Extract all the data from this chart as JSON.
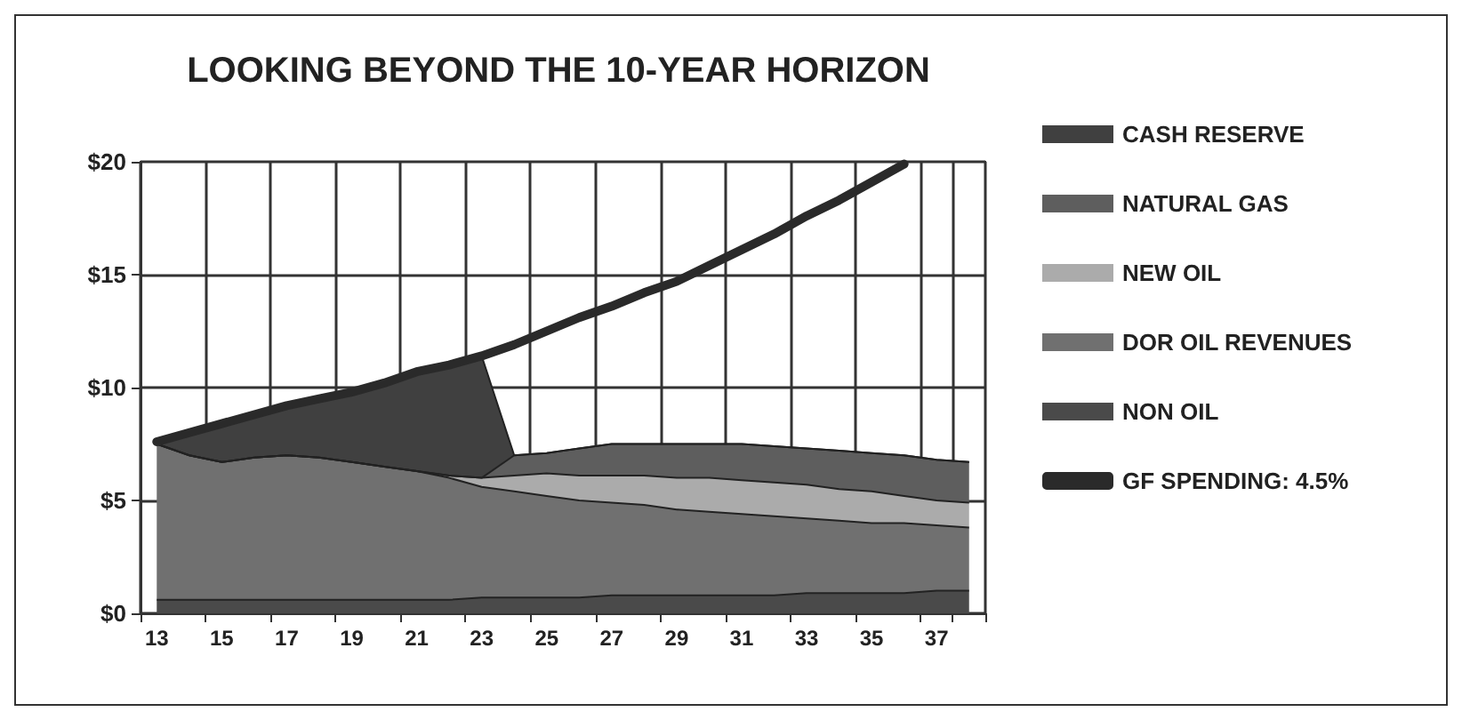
{
  "chart_data": {
    "type": "area",
    "title": "LOOKING BEYOND THE 10-YEAR HORIZON",
    "stacked": true,
    "categories": [
      "13",
      null,
      "15",
      null,
      "17",
      null,
      "19",
      null,
      "21",
      null,
      "23",
      null,
      "25",
      null,
      "27",
      null,
      "29",
      null,
      "31",
      null,
      "33",
      null,
      "35",
      null,
      "37",
      null
    ],
    "ylim": [
      0,
      20
    ],
    "yticks": [
      {
        "value": 0,
        "label": "$0"
      },
      {
        "value": 5,
        "label": "$5"
      },
      {
        "value": 10,
        "label": "$10"
      },
      {
        "value": 15,
        "label": "$15"
      },
      {
        "value": 20,
        "label": "$20"
      }
    ],
    "grid": true,
    "legend": "right",
    "marker": "none",
    "series": [
      {
        "name": "NON OIL",
        "color": "#4a4a4a",
        "values": [
          0.6,
          0.6,
          0.6,
          0.6,
          0.6,
          0.6,
          0.6,
          0.6,
          0.6,
          0.6,
          0.7,
          0.7,
          0.7,
          0.7,
          0.8,
          0.8,
          0.8,
          0.8,
          0.8,
          0.8,
          0.9,
          0.9,
          0.9,
          0.9,
          1.0,
          1.0
        ]
      },
      {
        "name": "DOR OIL REVENUES",
        "color": "#707070",
        "values": [
          6.9,
          6.4,
          6.1,
          6.3,
          6.4,
          6.3,
          6.1,
          5.9,
          5.7,
          5.4,
          4.9,
          4.7,
          4.5,
          4.3,
          4.1,
          4.0,
          3.8,
          3.7,
          3.6,
          3.5,
          3.3,
          3.2,
          3.1,
          3.1,
          2.9,
          2.8
        ]
      },
      {
        "name": "NEW OIL",
        "color": "#ababab",
        "values": [
          0,
          0,
          0,
          0,
          0,
          0,
          0,
          0,
          0,
          0.1,
          0.4,
          0.7,
          1.0,
          1.1,
          1.2,
          1.3,
          1.4,
          1.5,
          1.5,
          1.5,
          1.5,
          1.4,
          1.4,
          1.2,
          1.1,
          1.1
        ]
      },
      {
        "name": "NATURAL GAS",
        "color": "#5e5e5e",
        "values": [
          0,
          0,
          0,
          0,
          0,
          0,
          0,
          0,
          0,
          0,
          0,
          0.9,
          0.9,
          1.2,
          1.4,
          1.4,
          1.5,
          1.5,
          1.6,
          1.6,
          1.6,
          1.7,
          1.7,
          1.8,
          1.8,
          1.8
        ]
      },
      {
        "name": "CASH RESERVE",
        "color": "#404040",
        "values": [
          0.1,
          1.0,
          1.7,
          1.9,
          2.2,
          2.6,
          3.1,
          3.7,
          4.4,
          4.9,
          5.4,
          0,
          0,
          0,
          0,
          0,
          0,
          0,
          0,
          0,
          0,
          0,
          0,
          0,
          0,
          0
        ]
      },
      {
        "name": "GF SPENDING: 4.5%",
        "type": "line",
        "color": "#2a2a2a",
        "values": [
          7.6,
          8.0,
          8.4,
          8.8,
          9.2,
          9.5,
          9.8,
          10.2,
          10.7,
          11.0,
          11.4,
          11.9,
          12.5,
          13.1,
          13.6,
          14.2,
          14.7,
          15.4,
          16.1,
          16.8,
          17.6,
          18.3,
          19.1,
          19.9,
          null,
          null
        ]
      }
    ]
  }
}
